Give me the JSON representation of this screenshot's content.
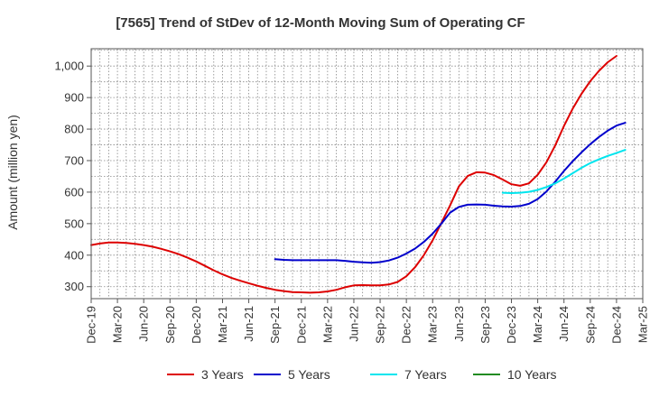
{
  "chart_data": {
    "type": "line",
    "title": "[7565]  Trend of StDev of 12-Month Moving Sum of Operating CF",
    "ylabel": "Amount (million yen)",
    "xlabel": "",
    "x_ticks": [
      "Dec-19",
      "Mar-20",
      "Jun-20",
      "Sep-20",
      "Dec-20",
      "Mar-21",
      "Jun-21",
      "Sep-21",
      "Dec-21",
      "Mar-22",
      "Jun-22",
      "Sep-22",
      "Dec-22",
      "Mar-23",
      "Jun-23",
      "Sep-23",
      "Dec-23",
      "Mar-24",
      "Jun-24",
      "Sep-24",
      "Dec-24",
      "Mar-25"
    ],
    "y_ticks": [
      300,
      400,
      500,
      600,
      700,
      800,
      900,
      1000
    ],
    "y_tick_labels": [
      "300",
      "400",
      "500",
      "600",
      "700",
      "800",
      "900",
      "1,000"
    ],
    "ylim": [
      262,
      1055
    ],
    "grid": true,
    "legend_position": "bottom",
    "series": [
      {
        "name": "3 Years",
        "color": "#dd0000",
        "start_index": 0,
        "values": [
          432,
          437,
          440,
          440,
          439,
          436,
          432,
          427,
          420,
          412,
          403,
          392,
          380,
          366,
          352,
          339,
          328,
          319,
          311,
          303,
          296,
          290,
          286,
          283,
          282,
          281,
          282,
          285,
          290,
          298,
          304,
          305,
          304,
          304,
          307,
          315,
          333,
          362,
          400,
          447,
          502,
          558,
          618,
          651,
          663,
          662,
          654,
          640,
          625,
          620,
          628,
          655,
          695,
          748,
          810,
          865,
          912,
          952,
          985,
          1012,
          1032
        ]
      },
      {
        "name": "5 Years",
        "color": "#0000cc",
        "start_index": 21,
        "values": [
          387,
          385,
          384,
          384,
          384,
          384,
          384,
          384,
          382,
          379,
          377,
          376,
          378,
          383,
          392,
          405,
          421,
          442,
          468,
          500,
          535,
          553,
          560,
          561,
          560,
          557,
          555,
          554,
          556,
          563,
          578,
          602,
          633,
          667,
          698,
          726,
          752,
          775,
          795,
          811,
          820
        ]
      },
      {
        "name": "7 Years",
        "color": "#00e5ee",
        "start_index": 47,
        "values": [
          598,
          597,
          598,
          601,
          607,
          616,
          628,
          643,
          660,
          677,
          692,
          704,
          715,
          724,
          734
        ]
      },
      {
        "name": "10 Years",
        "color": "#228b22",
        "start_index": 0,
        "values": []
      }
    ]
  }
}
